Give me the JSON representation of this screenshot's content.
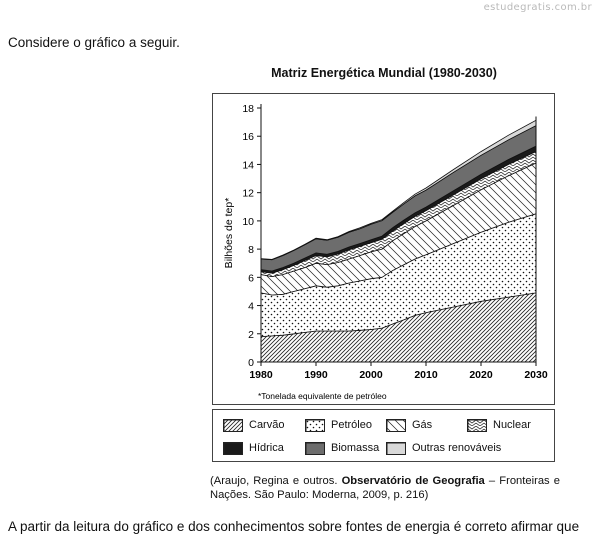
{
  "site": {
    "watermark": "estudegratis.com.br"
  },
  "intro_text": "Considere o gráfico a seguir.",
  "chart_data": {
    "type": "area",
    "stacked": true,
    "title": "Matriz Energética Mundial (1980-2030)",
    "xlabel": "",
    "ylabel": "Bilhões de tep*",
    "footnote": "*Tonelada equivalente de petróleo",
    "xlim": [
      1980,
      2030
    ],
    "ylim": [
      0,
      18
    ],
    "xticks": [
      1980,
      1990,
      2000,
      2010,
      2020,
      2030
    ],
    "yticks": [
      0,
      2,
      4,
      6,
      8,
      10,
      12,
      14,
      16,
      18
    ],
    "x": [
      1980,
      1982,
      1984,
      1986,
      1988,
      1990,
      1992,
      1994,
      1996,
      1998,
      2000,
      2002,
      2004,
      2006,
      2008,
      2010,
      2015,
      2020,
      2025,
      2030
    ],
    "series": [
      {
        "name": "Carvão",
        "pattern": "diag-fine",
        "values": [
          1.8,
          1.85,
          1.9,
          2.0,
          2.1,
          2.2,
          2.2,
          2.2,
          2.2,
          2.25,
          2.3,
          2.4,
          2.7,
          3.0,
          3.3,
          3.5,
          3.9,
          4.3,
          4.6,
          4.9
        ]
      },
      {
        "name": "Petróleo",
        "pattern": "dots",
        "values": [
          3.1,
          2.9,
          2.9,
          3.0,
          3.1,
          3.2,
          3.1,
          3.2,
          3.4,
          3.5,
          3.6,
          3.6,
          3.8,
          3.9,
          4.0,
          4.1,
          4.5,
          4.9,
          5.3,
          5.6
        ]
      },
      {
        "name": "Gás",
        "pattern": "diag-wide",
        "values": [
          1.3,
          1.3,
          1.4,
          1.45,
          1.5,
          1.6,
          1.6,
          1.65,
          1.7,
          1.8,
          1.9,
          2.0,
          2.1,
          2.2,
          2.3,
          2.4,
          2.7,
          3.0,
          3.3,
          3.6
        ]
      },
      {
        "name": "Nuclear",
        "pattern": "zigzag",
        "values": [
          0.2,
          0.25,
          0.35,
          0.4,
          0.5,
          0.55,
          0.55,
          0.6,
          0.65,
          0.65,
          0.65,
          0.7,
          0.7,
          0.72,
          0.72,
          0.72,
          0.75,
          0.78,
          0.8,
          0.82
        ]
      },
      {
        "name": "Hídrica",
        "pattern": "solid-black",
        "values": [
          0.15,
          0.15,
          0.15,
          0.16,
          0.17,
          0.18,
          0.18,
          0.19,
          0.2,
          0.2,
          0.21,
          0.22,
          0.23,
          0.24,
          0.25,
          0.26,
          0.29,
          0.32,
          0.35,
          0.38
        ]
      },
      {
        "name": "Biomassa",
        "pattern": "solid-gray",
        "values": [
          0.75,
          0.8,
          0.85,
          0.9,
          0.95,
          1.0,
          1.0,
          1.0,
          1.05,
          1.05,
          1.1,
          1.1,
          1.1,
          1.15,
          1.2,
          1.2,
          1.3,
          1.35,
          1.4,
          1.45
        ]
      },
      {
        "name": "Outras renováveis",
        "pattern": "solid-light",
        "values": [
          0.02,
          0.02,
          0.03,
          0.03,
          0.03,
          0.04,
          0.04,
          0.05,
          0.05,
          0.06,
          0.06,
          0.07,
          0.08,
          0.1,
          0.12,
          0.15,
          0.2,
          0.26,
          0.32,
          0.38
        ]
      }
    ],
    "legend": {
      "row1": [
        "Carvão",
        "Petróleo",
        "Gás",
        "Nuclear"
      ],
      "row2": [
        "Hídrica",
        "Biomassa",
        "Outras renováveis"
      ]
    }
  },
  "source": {
    "prefix": "(Araujo, Regina e outros. ",
    "book": "Observatório de Geografia",
    "suffix": " – Fronteiras e Nações. São Paulo: Moderna, 2009, p. 216)"
  },
  "question_text": "A partir da leitura do gráfico e dos conhecimentos sobre fontes de energia é correto afirmar que"
}
